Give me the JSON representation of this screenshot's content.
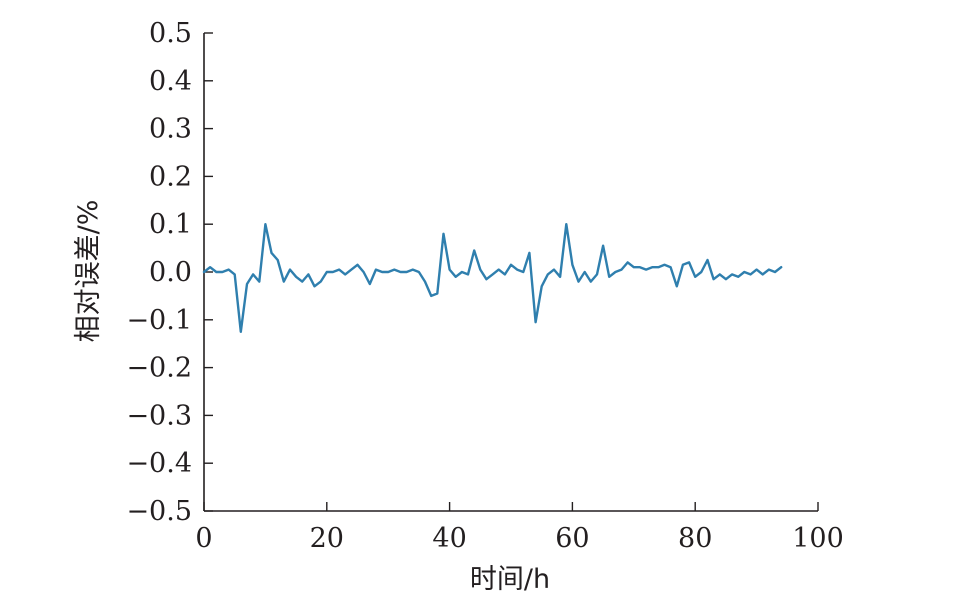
{
  "chart_data": {
    "type": "line",
    "title": "",
    "xlabel": "时间/h",
    "ylabel": "相对误差/%",
    "xlim": [
      0,
      100
    ],
    "ylim": [
      -0.5,
      0.5
    ],
    "x_ticks": [
      "0",
      "20",
      "40",
      "60",
      "80",
      "100"
    ],
    "y_ticks": [
      "0.5",
      "0.4",
      "0.3",
      "0.2",
      "0.1",
      "0.0",
      "−0.1",
      "−0.2",
      "−0.3",
      "−0.4",
      "−0.5"
    ],
    "grid": false,
    "line_color": "#2f7fae",
    "axis_color": "#231f20",
    "series": [
      {
        "x": [
          0,
          1,
          2,
          3,
          4,
          5,
          6,
          7,
          8,
          9,
          10,
          11,
          12,
          13,
          14,
          15,
          16,
          17,
          18,
          19,
          20,
          21,
          22,
          23,
          24,
          25,
          26,
          27,
          28,
          29,
          30,
          31,
          32,
          33,
          34,
          35,
          36,
          37,
          38,
          39,
          40,
          41,
          42,
          43,
          44,
          45,
          46,
          47,
          48,
          49,
          50,
          51,
          52,
          53,
          54,
          55,
          56,
          57,
          58,
          59,
          60,
          61,
          62,
          63,
          64,
          65,
          66,
          67,
          68,
          69,
          70,
          71,
          72,
          73,
          74,
          75,
          76,
          77,
          78,
          79,
          80,
          81,
          82,
          83,
          84,
          85,
          86,
          87,
          88,
          89,
          90,
          91,
          92,
          93,
          94
        ],
        "values": [
          0.0,
          0.01,
          0.0,
          0.0,
          0.005,
          -0.005,
          -0.125,
          -0.025,
          -0.005,
          -0.02,
          0.1,
          0.04,
          0.025,
          -0.02,
          0.005,
          -0.01,
          -0.02,
          -0.005,
          -0.03,
          -0.02,
          0.0,
          0.0,
          0.005,
          -0.005,
          0.005,
          0.015,
          0.0,
          -0.025,
          0.005,
          0.0,
          0.0,
          0.005,
          0.0,
          0.0,
          0.005,
          0.0,
          -0.02,
          -0.05,
          -0.045,
          0.08,
          0.005,
          -0.01,
          0.0,
          -0.005,
          0.045,
          0.005,
          -0.015,
          -0.005,
          0.005,
          -0.005,
          0.015,
          0.005,
          0.0,
          0.04,
          -0.105,
          -0.03,
          -0.005,
          0.005,
          -0.01,
          0.1,
          0.015,
          -0.02,
          0.0,
          -0.02,
          -0.005,
          0.055,
          -0.01,
          0.0,
          0.005,
          0.02,
          0.01,
          0.01,
          0.005,
          0.01,
          0.01,
          0.015,
          0.01,
          -0.03,
          0.015,
          0.02,
          -0.01,
          0.0,
          0.025,
          -0.015,
          -0.005,
          -0.015,
          -0.005,
          -0.01,
          0.0,
          -0.005,
          0.005,
          -0.005,
          0.005,
          0.0,
          0.01
        ]
      }
    ]
  }
}
